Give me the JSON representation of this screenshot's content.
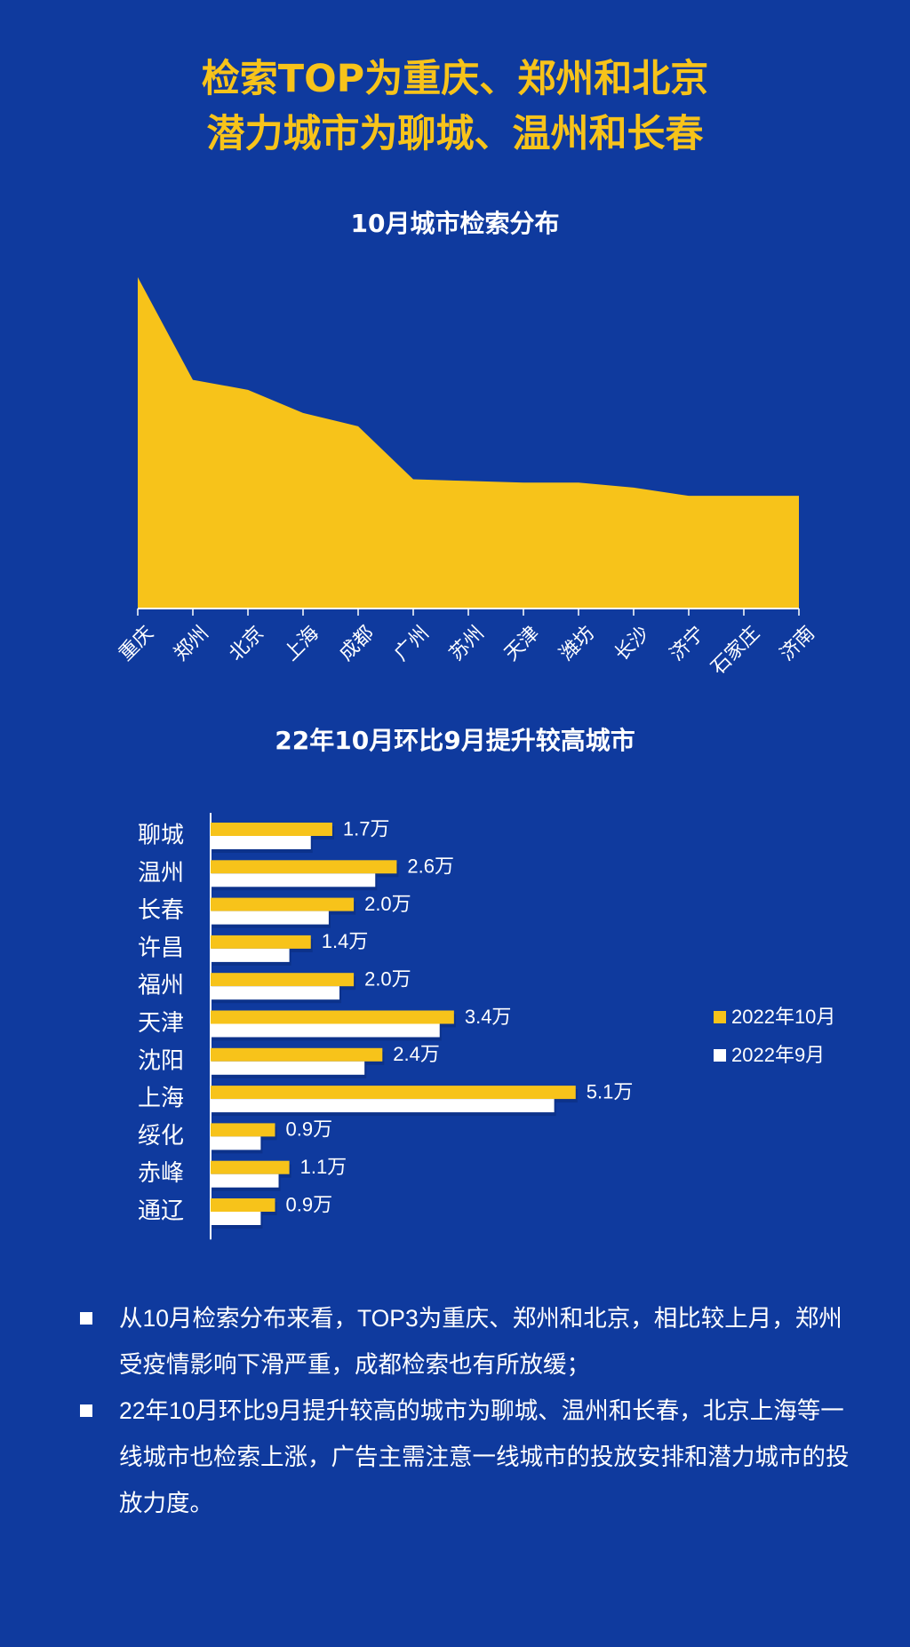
{
  "headline": {
    "line1": "检索TOP为重庆、郑州和北京",
    "line2": "潜力城市为聊城、温州和长春"
  },
  "chart_data": [
    {
      "type": "area",
      "title": "10月城市检索分布",
      "categories": [
        "重庆",
        "郑州",
        "北京",
        "上海",
        "成都",
        "广州",
        "苏州",
        "天津",
        "潍坊",
        "长沙",
        "济宁",
        "石家庄",
        "济南"
      ],
      "values": [
        100,
        69,
        66,
        59,
        55,
        39,
        38.5,
        38,
        38,
        36.5,
        34,
        34,
        34
      ],
      "ylim": [
        0,
        100
      ],
      "color": "#f7c31a"
    },
    {
      "type": "bar",
      "orientation": "horizontal",
      "title": "22年10月环比9月提升较高城市",
      "categories": [
        "聊城",
        "温州",
        "长春",
        "许昌",
        "福州",
        "天津",
        "沈阳",
        "上海",
        "绥化",
        "赤峰",
        "通辽"
      ],
      "series": [
        {
          "name": "2022年10月",
          "color": "#f7c31a",
          "values": [
            1.7,
            2.6,
            2.0,
            1.4,
            2.0,
            3.4,
            2.4,
            5.1,
            0.9,
            1.1,
            0.9
          ],
          "labels": [
            "1.7万",
            "2.6万",
            "2.0万",
            "1.4万",
            "2.0万",
            "3.4万",
            "2.4万",
            "5.1万",
            "0.9万",
            "1.1万",
            "0.9万"
          ]
        },
        {
          "name": "2022年9月",
          "color": "#ffffff",
          "values": [
            1.4,
            2.3,
            1.65,
            1.1,
            1.8,
            3.2,
            2.15,
            4.8,
            0.7,
            0.95,
            0.7
          ]
        }
      ],
      "legend": "right",
      "xlim": [
        0,
        5.5
      ]
    }
  ],
  "notes": [
    "从10月检索分布来看，TOP3为重庆、郑州和北京，相比较上月，郑州受疫情影响下滑严重，成都检索也有所放缓；",
    "22年10月环比9月提升较高的城市为聊城、温州和长春，北京上海等一线城市也检索上涨，广告主需注意一线城市的投放安排和潜力城市的投放力度。"
  ]
}
